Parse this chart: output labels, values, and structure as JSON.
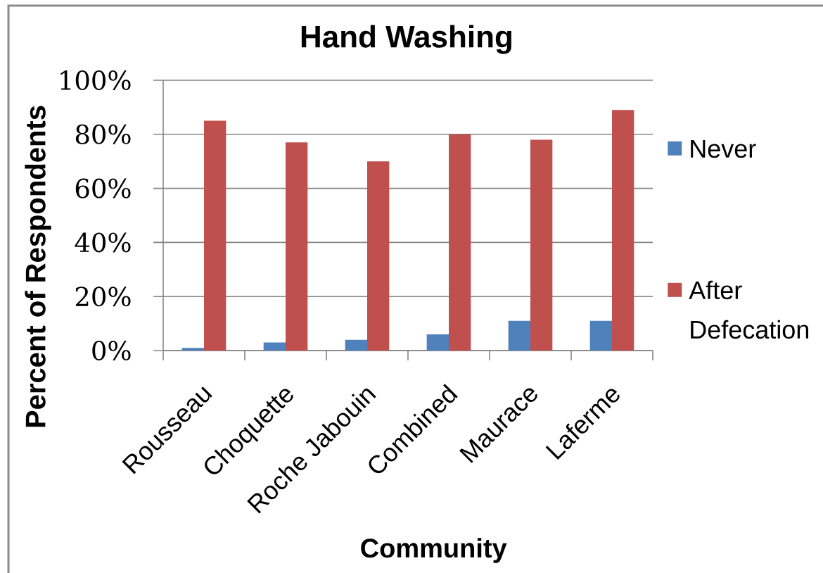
{
  "chart_data": {
    "type": "bar",
    "title": "Hand Washing",
    "xlabel": "Community",
    "ylabel": "Percent of Respondents",
    "categories": [
      "Rousseau",
      "Choquette",
      "Roche Jabouin",
      "Combined",
      "Maurace",
      "Laferme"
    ],
    "series": [
      {
        "name": "Never",
        "color": "#4f81bd",
        "values": [
          1,
          3,
          4,
          6,
          11,
          11
        ]
      },
      {
        "name": "After Defecation",
        "color": "#c0504d",
        "values": [
          85,
          77,
          70,
          80,
          78,
          89
        ]
      }
    ],
    "ylim": [
      0,
      100
    ],
    "yticks": [
      {
        "value": 0,
        "label": "0%"
      },
      {
        "value": 20,
        "label": "20%"
      },
      {
        "value": 40,
        "label": "40%"
      },
      {
        "value": 60,
        "label": "60%"
      },
      {
        "value": 80,
        "label": "80%"
      },
      {
        "value": 100,
        "label": "100%"
      }
    ],
    "grid": "y",
    "legend": "right"
  }
}
